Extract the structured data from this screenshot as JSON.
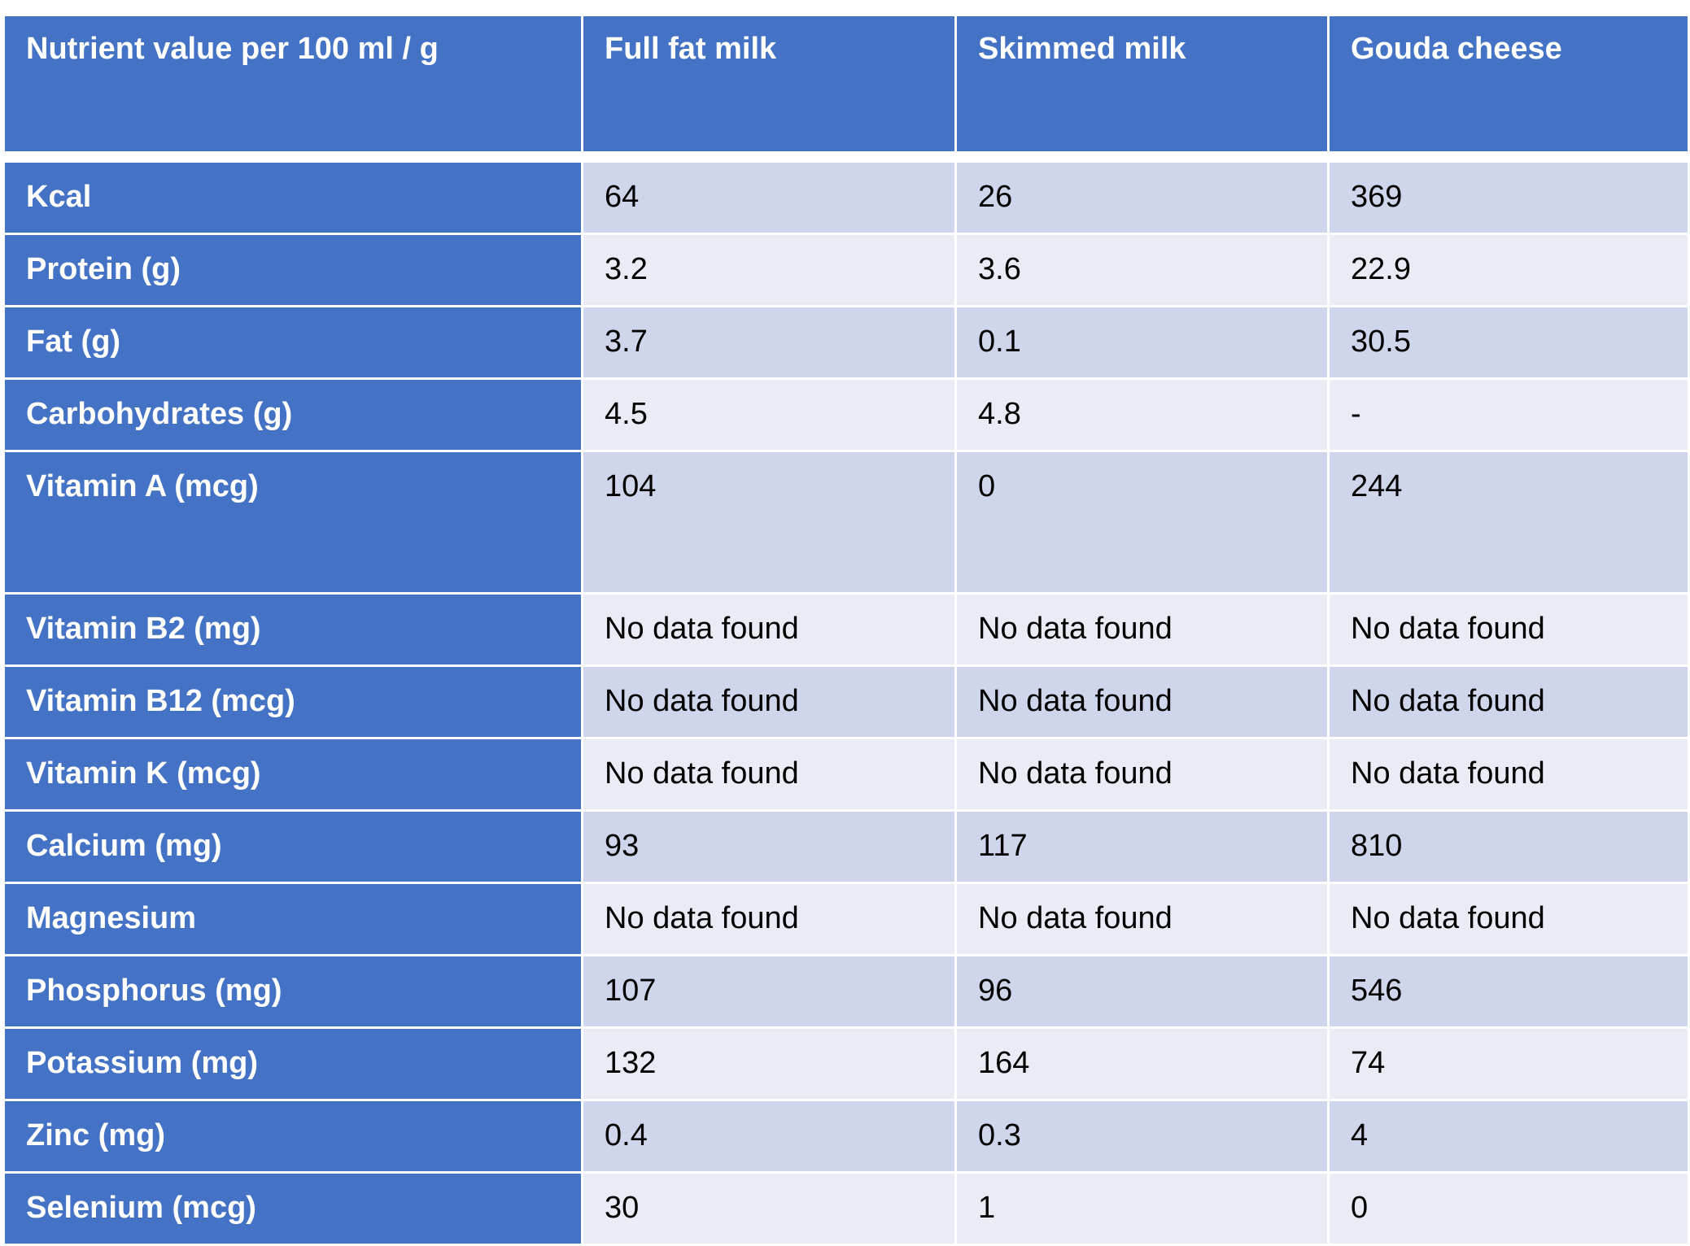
{
  "header": [
    "Nutrient value per 100 ml / g",
    "Full fat milk",
    "Skimmed milk",
    "Gouda cheese"
  ],
  "rows": [
    {
      "label": "Kcal",
      "values": [
        "64",
        "26",
        "369"
      ]
    },
    {
      "label": "Protein (g)",
      "values": [
        "3.2",
        "3.6",
        "22.9"
      ]
    },
    {
      "label": "Fat (g)",
      "values": [
        "3.7",
        "0.1",
        "30.5"
      ]
    },
    {
      "label": "Carbohydrates (g)",
      "values": [
        "4.5",
        "4.8",
        "-"
      ]
    },
    {
      "label": "Vitamin A (mcg)",
      "values": [
        "104",
        "0",
        "244"
      ]
    },
    {
      "label": "Vitamin B2 (mg)",
      "values": [
        "No data found",
        "No data found",
        "No data found"
      ]
    },
    {
      "label": "Vitamin B12 (mcg)",
      "values": [
        "No data found",
        "No data found",
        "No data found"
      ]
    },
    {
      "label": "Vitamin K (mcg)",
      "values": [
        "No data found",
        "No data found",
        "No data found"
      ]
    },
    {
      "label": "Calcium (mg)",
      "values": [
        "93",
        "117",
        "810"
      ]
    },
    {
      "label": "Magnesium",
      "values": [
        "No data found",
        "No data found",
        "No data found"
      ]
    },
    {
      "label": "Phosphorus (mg)",
      "values": [
        "107",
        "96",
        "546"
      ]
    },
    {
      "label": "Potassium (mg)",
      "values": [
        "132",
        "164",
        "74"
      ]
    },
    {
      "label": "Zinc (mg)",
      "values": [
        "0.4",
        "0.3",
        "4"
      ]
    },
    {
      "label": "Selenium (mcg)",
      "values": [
        "30",
        "1",
        "0"
      ]
    }
  ]
}
